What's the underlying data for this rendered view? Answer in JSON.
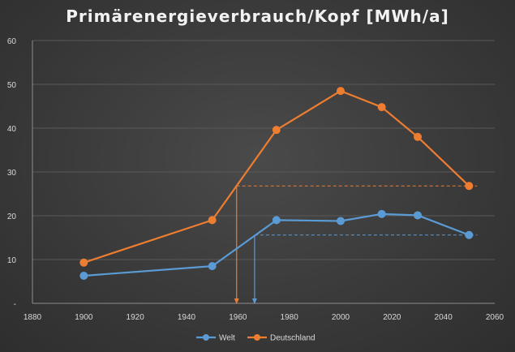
{
  "chart_data": {
    "type": "line",
    "title": "Primärenergieverbrauch/Kopf [MWh/a]",
    "xlabel": "",
    "ylabel": "",
    "xlim": [
      1880,
      2060
    ],
    "ylim": [
      0,
      60
    ],
    "x_ticks": [
      "1880",
      "1900",
      "1920",
      "1940",
      "1960",
      "1980",
      "2000",
      "2020",
      "2040",
      "2060"
    ],
    "y_ticks": [
      "-",
      "10",
      "20",
      "30",
      "40",
      "50",
      "60"
    ],
    "grid": "horizontal",
    "legend_position": "bottom",
    "series": [
      {
        "name": "Welt",
        "color": "#5b9bd5",
        "x": [
          1900,
          1950,
          1975,
          2000,
          2016,
          2030,
          2050
        ],
        "y": [
          6.3,
          8.5,
          19.0,
          18.8,
          20.4,
          20.1,
          15.6
        ]
      },
      {
        "name": "Deutschland",
        "color": "#ed7d31",
        "x": [
          1900,
          1950,
          1975,
          2000,
          2016,
          2030,
          2050
        ],
        "y": [
          9.3,
          19.0,
          39.6,
          48.5,
          44.8,
          38.0,
          26.8
        ]
      }
    ],
    "annotations": [
      {
        "series": "Deutschland",
        "color": "#ed7d31",
        "level_y": 26.8,
        "from_x": 2050,
        "to_x": 1959.5,
        "arrow_down_at_x": 1959.5
      },
      {
        "series": "Welt",
        "color": "#5b9bd5",
        "level_y": 15.6,
        "from_x": 2050,
        "to_x": 1966.5,
        "arrow_down_at_x": 1966.5
      }
    ]
  }
}
